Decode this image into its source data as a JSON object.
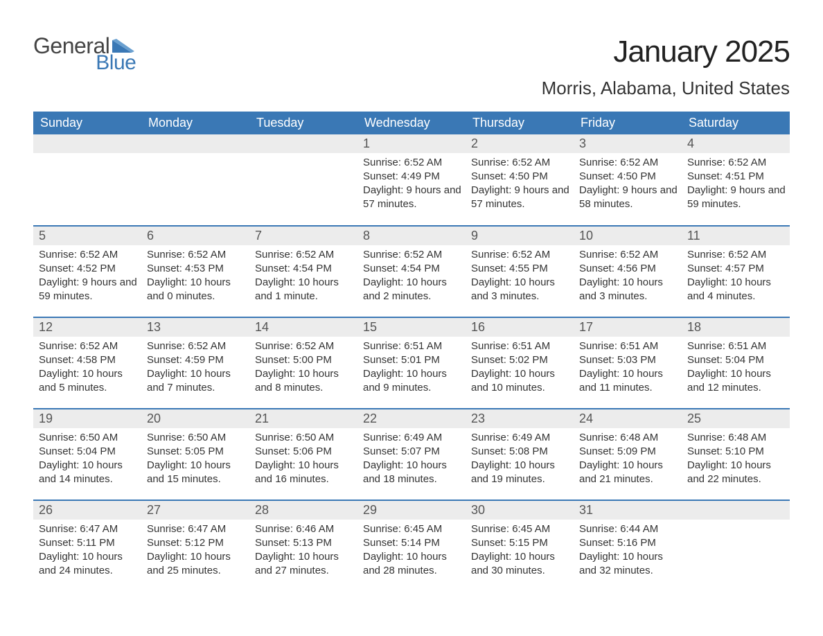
{
  "brand": {
    "text1": "General",
    "text2": "Blue",
    "tri_color": "#3a78b5"
  },
  "title": "January 2025",
  "location": "Morris, Alabama, United States",
  "colors": {
    "header_bg": "#3a78b5",
    "header_text": "#ffffff",
    "daynum_bg": "#ececec",
    "rule": "#3a78b5",
    "body_text": "#333333"
  },
  "weekdays": [
    "Sunday",
    "Monday",
    "Tuesday",
    "Wednesday",
    "Thursday",
    "Friday",
    "Saturday"
  ],
  "weeks": [
    [
      null,
      null,
      null,
      {
        "n": "1",
        "sunrise": "6:52 AM",
        "sunset": "4:49 PM",
        "daylight": "9 hours and 57 minutes."
      },
      {
        "n": "2",
        "sunrise": "6:52 AM",
        "sunset": "4:50 PM",
        "daylight": "9 hours and 57 minutes."
      },
      {
        "n": "3",
        "sunrise": "6:52 AM",
        "sunset": "4:50 PM",
        "daylight": "9 hours and 58 minutes."
      },
      {
        "n": "4",
        "sunrise": "6:52 AM",
        "sunset": "4:51 PM",
        "daylight": "9 hours and 59 minutes."
      }
    ],
    [
      {
        "n": "5",
        "sunrise": "6:52 AM",
        "sunset": "4:52 PM",
        "daylight": "9 hours and 59 minutes."
      },
      {
        "n": "6",
        "sunrise": "6:52 AM",
        "sunset": "4:53 PM",
        "daylight": "10 hours and 0 minutes."
      },
      {
        "n": "7",
        "sunrise": "6:52 AM",
        "sunset": "4:54 PM",
        "daylight": "10 hours and 1 minute."
      },
      {
        "n": "8",
        "sunrise": "6:52 AM",
        "sunset": "4:54 PM",
        "daylight": "10 hours and 2 minutes."
      },
      {
        "n": "9",
        "sunrise": "6:52 AM",
        "sunset": "4:55 PM",
        "daylight": "10 hours and 3 minutes."
      },
      {
        "n": "10",
        "sunrise": "6:52 AM",
        "sunset": "4:56 PM",
        "daylight": "10 hours and 3 minutes."
      },
      {
        "n": "11",
        "sunrise": "6:52 AM",
        "sunset": "4:57 PM",
        "daylight": "10 hours and 4 minutes."
      }
    ],
    [
      {
        "n": "12",
        "sunrise": "6:52 AM",
        "sunset": "4:58 PM",
        "daylight": "10 hours and 5 minutes."
      },
      {
        "n": "13",
        "sunrise": "6:52 AM",
        "sunset": "4:59 PM",
        "daylight": "10 hours and 7 minutes."
      },
      {
        "n": "14",
        "sunrise": "6:52 AM",
        "sunset": "5:00 PM",
        "daylight": "10 hours and 8 minutes."
      },
      {
        "n": "15",
        "sunrise": "6:51 AM",
        "sunset": "5:01 PM",
        "daylight": "10 hours and 9 minutes."
      },
      {
        "n": "16",
        "sunrise": "6:51 AM",
        "sunset": "5:02 PM",
        "daylight": "10 hours and 10 minutes."
      },
      {
        "n": "17",
        "sunrise": "6:51 AM",
        "sunset": "5:03 PM",
        "daylight": "10 hours and 11 minutes."
      },
      {
        "n": "18",
        "sunrise": "6:51 AM",
        "sunset": "5:04 PM",
        "daylight": "10 hours and 12 minutes."
      }
    ],
    [
      {
        "n": "19",
        "sunrise": "6:50 AM",
        "sunset": "5:04 PM",
        "daylight": "10 hours and 14 minutes."
      },
      {
        "n": "20",
        "sunrise": "6:50 AM",
        "sunset": "5:05 PM",
        "daylight": "10 hours and 15 minutes."
      },
      {
        "n": "21",
        "sunrise": "6:50 AM",
        "sunset": "5:06 PM",
        "daylight": "10 hours and 16 minutes."
      },
      {
        "n": "22",
        "sunrise": "6:49 AM",
        "sunset": "5:07 PM",
        "daylight": "10 hours and 18 minutes."
      },
      {
        "n": "23",
        "sunrise": "6:49 AM",
        "sunset": "5:08 PM",
        "daylight": "10 hours and 19 minutes."
      },
      {
        "n": "24",
        "sunrise": "6:48 AM",
        "sunset": "5:09 PM",
        "daylight": "10 hours and 21 minutes."
      },
      {
        "n": "25",
        "sunrise": "6:48 AM",
        "sunset": "5:10 PM",
        "daylight": "10 hours and 22 minutes."
      }
    ],
    [
      {
        "n": "26",
        "sunrise": "6:47 AM",
        "sunset": "5:11 PM",
        "daylight": "10 hours and 24 minutes."
      },
      {
        "n": "27",
        "sunrise": "6:47 AM",
        "sunset": "5:12 PM",
        "daylight": "10 hours and 25 minutes."
      },
      {
        "n": "28",
        "sunrise": "6:46 AM",
        "sunset": "5:13 PM",
        "daylight": "10 hours and 27 minutes."
      },
      {
        "n": "29",
        "sunrise": "6:45 AM",
        "sunset": "5:14 PM",
        "daylight": "10 hours and 28 minutes."
      },
      {
        "n": "30",
        "sunrise": "6:45 AM",
        "sunset": "5:15 PM",
        "daylight": "10 hours and 30 minutes."
      },
      {
        "n": "31",
        "sunrise": "6:44 AM",
        "sunset": "5:16 PM",
        "daylight": "10 hours and 32 minutes."
      },
      null
    ]
  ],
  "labels": {
    "sunrise_prefix": "Sunrise: ",
    "sunset_prefix": "Sunset: ",
    "daylight_prefix": "Daylight: "
  }
}
